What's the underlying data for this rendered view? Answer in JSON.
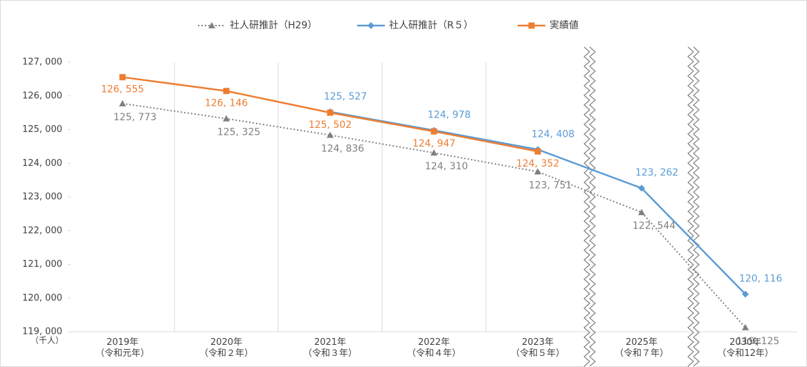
{
  "chart_data": {
    "type": "line",
    "y_unit": "（千人）",
    "categories": [
      "2019年\n（令和元年）",
      "2020年\n（令和２年）",
      "2021年\n（令和３年）",
      "2022年\n（令和４年）",
      "2023年\n（令和５年）",
      "2025年\n（令和７年）",
      "2030年\n（令和12年）"
    ],
    "series": [
      {
        "name": "社人研推計（H29）",
        "color": "#7f7f7f",
        "dash": "dotted",
        "marker": "triangle",
        "values": [
          125773,
          125325,
          124836,
          124310,
          123751,
          122544,
          119125
        ],
        "value_labels": [
          "125, 773",
          "125, 325",
          "124, 836",
          "124, 310",
          "123, 751",
          "122, 544",
          "119, 125"
        ]
      },
      {
        "name": "社人研推計（R５）",
        "color": "#5b9bd5",
        "dash": "solid",
        "marker": "diamond",
        "values": [
          null,
          null,
          125527,
          124978,
          124408,
          123262,
          120116
        ],
        "value_labels": [
          null,
          null,
          "125, 527",
          "124, 978",
          "124, 408",
          "123, 262",
          "120, 116"
        ]
      },
      {
        "name": "実績値",
        "color": "#ed7d31",
        "dash": "solid",
        "marker": "square",
        "values": [
          126555,
          126146,
          125502,
          124947,
          124352,
          null,
          null
        ],
        "value_labels": [
          "126, 555",
          "126, 146",
          "125, 502",
          "124, 947",
          "124, 352",
          null,
          null
        ]
      }
    ],
    "ylim": [
      119000,
      127000
    ],
    "yticks": [
      {
        "value": 119000,
        "label": "119, 000"
      },
      {
        "value": 120000,
        "label": "120, 000"
      },
      {
        "value": 121000,
        "label": "121, 000"
      },
      {
        "value": 122000,
        "label": "122, 000"
      },
      {
        "value": 123000,
        "label": "123, 000"
      },
      {
        "value": 124000,
        "label": "124, 000"
      },
      {
        "value": 125000,
        "label": "125, 000"
      },
      {
        "value": 126000,
        "label": "126, 000"
      },
      {
        "value": 127000,
        "label": "127, 000"
      }
    ],
    "legend": "top"
  }
}
